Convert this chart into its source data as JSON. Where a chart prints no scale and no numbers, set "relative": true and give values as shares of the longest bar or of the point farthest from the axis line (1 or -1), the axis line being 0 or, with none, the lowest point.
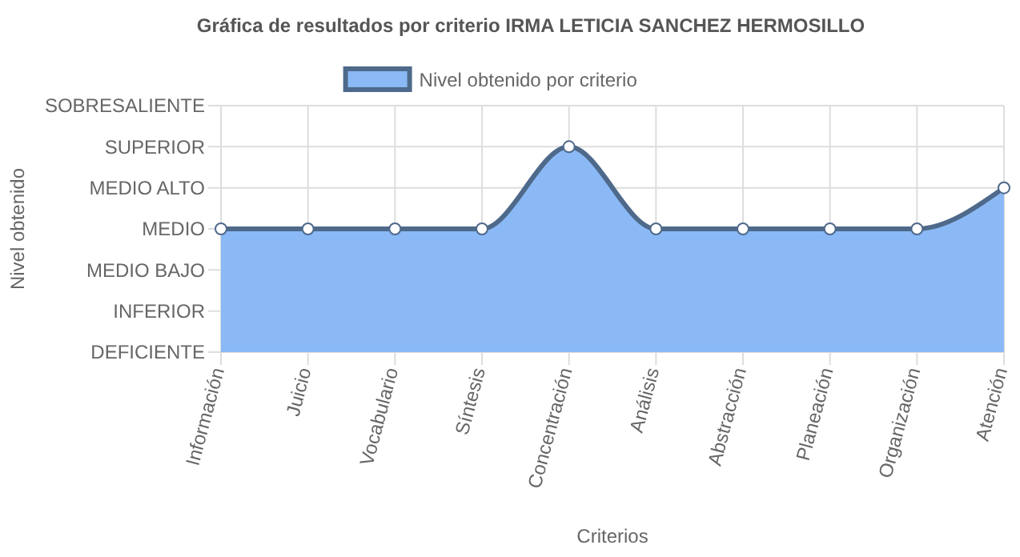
{
  "chart_data": {
    "type": "area",
    "title": "Gráfica de resultados por criterio IRMA LETICIA SANCHEZ HERMOSILLO",
    "xlabel": "Criterios",
    "annotations": [
      "Nivel obtenido"
    ],
    "categories": [
      "Información",
      "Juicio",
      "Vocabulario",
      "Síntesis",
      "Concentración",
      "Análisis",
      "Abstracción",
      "Planeación",
      "Organización",
      "Atención"
    ],
    "series": [
      {
        "name": "Nivel obtenido por criterio",
        "color": "#8ab9f5",
        "values": [
          0.6,
          0.6,
          0.6,
          0.6,
          1,
          0.6,
          0.6,
          0.6,
          0.6,
          0.8
        ]
      }
    ],
    "relative": true,
    "y_categories": [
      "SOBRESALIENTE",
      "SUPERIOR",
      "MEDIO ALTO",
      "MEDIO",
      "MEDIO BAJO",
      "INFERIOR",
      "DEFICIENTE"
    ],
    "grid": true,
    "legend": "top",
    "marker": "circle"
  }
}
